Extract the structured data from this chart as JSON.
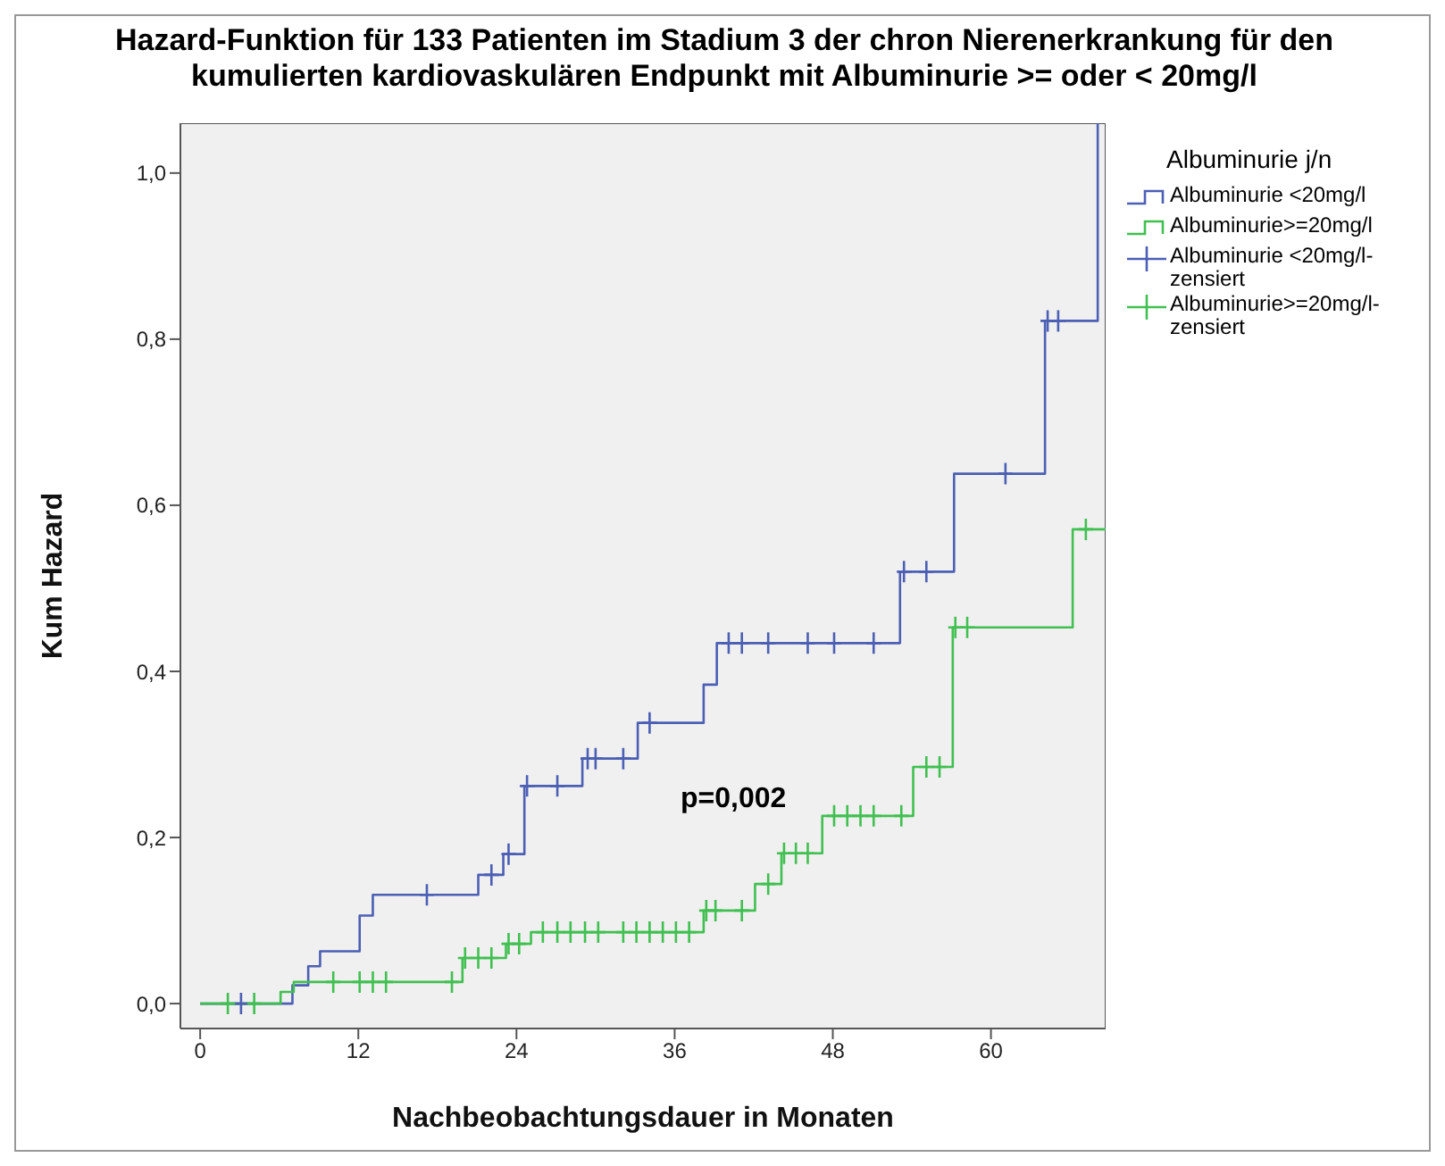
{
  "chart_data": {
    "type": "step",
    "title": "Hazard-Funktion für 133 Patienten im Stadium 3 der chron Nierenerkrankung für den kumulierten kardiovaskulären Endpunkt mit Albuminurie >= oder < 20mg/l",
    "xlabel": "Nachbeobachtungsdauer in Monaten",
    "ylabel": "Kum Hazard",
    "legend_title": "Albuminurie j/n",
    "legend": "right",
    "annotations": [
      "p=0,002"
    ],
    "xlim": [
      -1.5,
      68.7
    ],
    "xticks": [
      0,
      12,
      24,
      36,
      48,
      60
    ],
    "ylim": [
      -0.03,
      1.06
    ],
    "yticks": [
      {
        "value": 0,
        "label": "0,0"
      },
      {
        "value": 0.2,
        "label": "0,2"
      },
      {
        "value": 0.4,
        "label": "0,4"
      },
      {
        "value": 0.6,
        "label": "0,6"
      },
      {
        "value": 0.8,
        "label": "0,8"
      },
      {
        "value": 1,
        "label": "1,0"
      }
    ],
    "series": [
      {
        "name": "Albuminurie <20mg/l",
        "color": "#4b5fb4",
        "x": [
          0,
          7.0,
          8.2,
          9.1,
          12.1,
          13.1,
          21.1,
          23.0,
          24.6,
          29.0,
          33.2,
          38.2,
          39.2,
          53.1,
          57.2,
          64.1,
          68.1
        ],
        "values": [
          0,
          0.022,
          0.045,
          0.063,
          0.106,
          0.131,
          0.155,
          0.18,
          0.262,
          0.295,
          0.338,
          0.384,
          0.434,
          0.52,
          0.638,
          0.822,
          1.06
        ]
      },
      {
        "name": "Albuminurie>=20mg/l",
        "color": "#40c050",
        "x": [
          0,
          6.1,
          7.1,
          19.9,
          23.2,
          25.1,
          38.2,
          42.1,
          44.1,
          47.2,
          54.1,
          57.1,
          66.2,
          68.7
        ],
        "values": [
          0,
          0.014,
          0.026,
          0.055,
          0.072,
          0.086,
          0.112,
          0.144,
          0.181,
          0.226,
          0.285,
          0.453,
          0.571,
          0.571
        ]
      },
      {
        "name": "Albuminurie <20mg/l-zensiert",
        "type": "scatter",
        "marker": "cross",
        "color": "#4b5fb4",
        "x": [
          3.1,
          17.2,
          22.1,
          23.4,
          24.8,
          27.1,
          29.4,
          30.0,
          32.1,
          34.1,
          40.1,
          41.1,
          43.1,
          46.1,
          48.1,
          51.1,
          53.4,
          55.1,
          61.1,
          64.3,
          65.1
        ],
        "values": [
          0,
          0.131,
          0.155,
          0.18,
          0.262,
          0.262,
          0.295,
          0.295,
          0.295,
          0.338,
          0.434,
          0.434,
          0.434,
          0.434,
          0.434,
          0.434,
          0.52,
          0.52,
          0.638,
          0.822,
          0.822
        ]
      },
      {
        "name": "Albuminurie>=20mg/l-zensiert",
        "type": "scatter",
        "marker": "cross",
        "color": "#40c050",
        "x": [
          2.1,
          4.1,
          10.1,
          12.1,
          13.1,
          14.1,
          19.1,
          20.1,
          21.1,
          22.1,
          23.4,
          24.2,
          26.0,
          27.1,
          28.1,
          29.2,
          30.2,
          32.1,
          33.1,
          34.1,
          35.1,
          36.1,
          37.1,
          38.4,
          39.1,
          41.1,
          43.1,
          44.3,
          45.2,
          46.1,
          48.1,
          49.1,
          50.1,
          51.1,
          53.2,
          55.1,
          56.1,
          57.3,
          58.2,
          67.2
        ],
        "values": [
          0,
          0,
          0.026,
          0.026,
          0.026,
          0.026,
          0.026,
          0.055,
          0.055,
          0.055,
          0.072,
          0.072,
          0.086,
          0.086,
          0.086,
          0.086,
          0.086,
          0.086,
          0.086,
          0.086,
          0.086,
          0.086,
          0.086,
          0.112,
          0.112,
          0.112,
          0.144,
          0.181,
          0.181,
          0.181,
          0.226,
          0.226,
          0.226,
          0.226,
          0.226,
          0.285,
          0.285,
          0.453,
          0.453,
          0.571
        ]
      }
    ]
  }
}
